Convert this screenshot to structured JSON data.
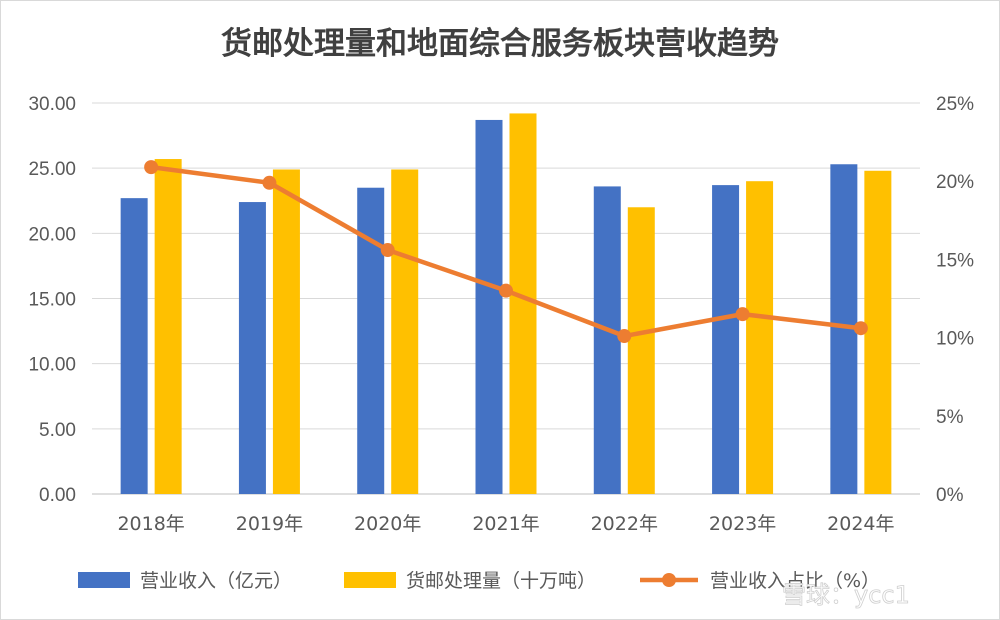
{
  "chart_data": {
    "type": "bar",
    "title": "货邮处理量和地面综合服务板块营收趋势",
    "categories": [
      "2018年",
      "2019年",
      "2020年",
      "2021年",
      "2022年",
      "2023年",
      "2024年"
    ],
    "series": [
      {
        "name": "营业收入（亿元）",
        "type": "bar",
        "axis": "left",
        "color": "#4472C4",
        "values": [
          22.7,
          22.4,
          23.5,
          28.7,
          23.6,
          23.7,
          25.3
        ]
      },
      {
        "name": "货邮处理量（十万吨）",
        "type": "bar",
        "axis": "left",
        "color": "#FFC000",
        "values": [
          25.7,
          24.9,
          24.9,
          29.2,
          22.0,
          24.0,
          24.8
        ]
      },
      {
        "name": "营业收入占比（%）",
        "type": "line",
        "axis": "right",
        "color": "#ED7D31",
        "values": [
          20.9,
          19.9,
          15.6,
          13.0,
          10.1,
          11.5,
          10.6
        ]
      }
    ],
    "y_left": {
      "min": 0,
      "max": 30,
      "ticks": [
        "0.00",
        "5.00",
        "10.00",
        "15.00",
        "20.00",
        "25.00",
        "30.00"
      ]
    },
    "y_right": {
      "min": 0,
      "max": 25,
      "ticks": [
        "0%",
        "5%",
        "10%",
        "15%",
        "20%",
        "25%"
      ]
    },
    "grid": true,
    "legend_position": "bottom"
  },
  "watermark": "雪球：ycc1"
}
